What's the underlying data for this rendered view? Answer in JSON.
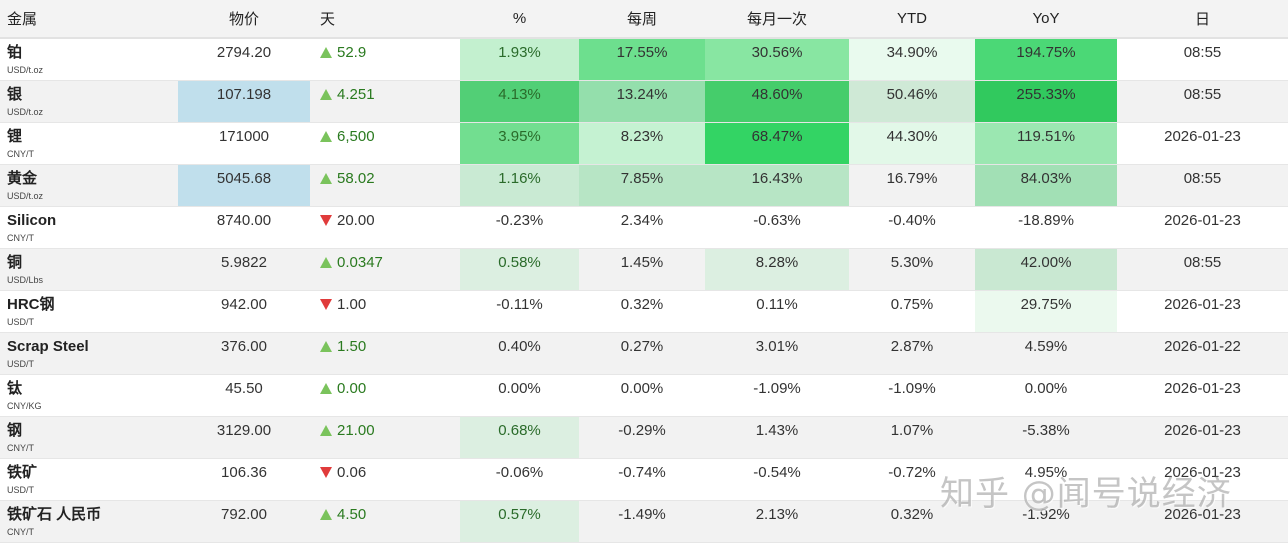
{
  "header": {
    "name": "金属",
    "price": "物价",
    "day": "天",
    "pct": "%",
    "weekly": "每周",
    "monthly": "每月一次",
    "ytd": "YTD",
    "yoy": "YoY",
    "date": "日"
  },
  "colors": {
    "up_arrow": "#7ac35c",
    "down_arrow": "#e03b3b",
    "price_highlight": "#c0dfec",
    "row_even": "#f2f2f2",
    "row_odd": "#ffffff"
  },
  "rows": [
    {
      "name": "铂",
      "unit": "USD/t.oz",
      "price": "2794.20",
      "price_bg": "",
      "dir": "up",
      "day": "52.9",
      "pct": "1.93%",
      "pct_bg": "#c3f0cf",
      "week": "17.55%",
      "week_bg": "#6ddf8e",
      "month": "30.56%",
      "month_bg": "#88e6a2",
      "ytd": "34.90%",
      "ytd_bg": "#e9faee",
      "yoy": "194.75%",
      "yoy_bg": "#4bd876",
      "date": "08:55"
    },
    {
      "name": "银",
      "unit": "USD/t.oz",
      "price": "107.198",
      "price_bg": "#c0dfec",
      "dir": "up",
      "day": "4.251",
      "pct": "4.13%",
      "pct_bg": "#52cf76",
      "week": "13.24%",
      "week_bg": "#94dfac",
      "month": "48.60%",
      "month_bg": "#45cd6b",
      "ytd": "50.46%",
      "ytd_bg": "#cfe9d6",
      "yoy": "255.33%",
      "yoy_bg": "#31c95e",
      "date": "08:55"
    },
    {
      "name": "锂",
      "unit": "CNY/T",
      "price": "171000",
      "price_bg": "",
      "dir": "up",
      "day": "6,500",
      "pct": "3.95%",
      "pct_bg": "#72de90",
      "week": "8.23%",
      "week_bg": "#c5f2d2",
      "month": "68.47%",
      "month_bg": "#33d464",
      "ytd": "44.30%",
      "ytd_bg": "#e2f8e8",
      "yoy": "119.51%",
      "yoy_bg": "#9be7b1",
      "date": "2026-01-23"
    },
    {
      "name": "黄金",
      "unit": "USD/t.oz",
      "price": "5045.68",
      "price_bg": "#c0dfec",
      "dir": "up",
      "day": "58.02",
      "pct": "1.16%",
      "pct_bg": "#c9ead3",
      "week": "7.85%",
      "week_bg": "#b7e5c5",
      "month": "16.43%",
      "month_bg": "#b7e5c5",
      "ytd": "16.79%",
      "ytd_bg": "",
      "yoy": "84.03%",
      "yoy_bg": "#a2e0b5",
      "date": "08:55"
    },
    {
      "name": "Silicon",
      "unit": "CNY/T",
      "price": "8740.00",
      "price_bg": "",
      "dir": "down",
      "day": "20.00",
      "pct": "-0.23%",
      "pct_bg": "",
      "week": "2.34%",
      "week_bg": "",
      "month": "-0.63%",
      "month_bg": "",
      "ytd": "-0.40%",
      "ytd_bg": "",
      "yoy": "-18.89%",
      "yoy_bg": "",
      "date": "2026-01-23"
    },
    {
      "name": "铜",
      "unit": "USD/Lbs",
      "price": "5.9822",
      "price_bg": "",
      "dir": "up",
      "day": "0.0347",
      "pct": "0.58%",
      "pct_bg": "#dcefe1",
      "week": "1.45%",
      "week_bg": "",
      "month": "8.28%",
      "month_bg": "#dcefe1",
      "ytd": "5.30%",
      "ytd_bg": "",
      "yoy": "42.00%",
      "yoy_bg": "#c9e8d2",
      "date": "08:55"
    },
    {
      "name": "HRC钢",
      "unit": "USD/T",
      "price": "942.00",
      "price_bg": "",
      "dir": "down",
      "day": "1.00",
      "pct": "-0.11%",
      "pct_bg": "",
      "week": "0.32%",
      "week_bg": "",
      "month": "0.11%",
      "month_bg": "",
      "ytd": "0.75%",
      "ytd_bg": "",
      "yoy": "29.75%",
      "yoy_bg": "#ebf9ee",
      "date": "2026-01-23"
    },
    {
      "name": "Scrap Steel",
      "unit": "USD/T",
      "price": "376.00",
      "price_bg": "",
      "dir": "up",
      "day": "1.50",
      "pct": "0.40%",
      "pct_bg": "",
      "week": "0.27%",
      "week_bg": "",
      "month": "3.01%",
      "month_bg": "",
      "ytd": "2.87%",
      "ytd_bg": "",
      "yoy": "4.59%",
      "yoy_bg": "",
      "date": "2026-01-22"
    },
    {
      "name": "钛",
      "unit": "CNY/KG",
      "price": "45.50",
      "price_bg": "",
      "dir": "up",
      "day": "0.00",
      "pct": "0.00%",
      "pct_bg": "",
      "week": "0.00%",
      "week_bg": "",
      "month": "-1.09%",
      "month_bg": "",
      "ytd": "-1.09%",
      "ytd_bg": "",
      "yoy": "0.00%",
      "yoy_bg": "",
      "date": "2026-01-23"
    },
    {
      "name": "钢",
      "unit": "CNY/T",
      "price": "3129.00",
      "price_bg": "",
      "dir": "up",
      "day": "21.00",
      "pct": "0.68%",
      "pct_bg": "#dcefe1",
      "week": "-0.29%",
      "week_bg": "",
      "month": "1.43%",
      "month_bg": "",
      "ytd": "1.07%",
      "ytd_bg": "",
      "yoy": "-5.38%",
      "yoy_bg": "",
      "date": "2026-01-23"
    },
    {
      "name": "铁矿",
      "unit": "USD/T",
      "price": "106.36",
      "price_bg": "",
      "dir": "down",
      "day": "0.06",
      "pct": "-0.06%",
      "pct_bg": "",
      "week": "-0.74%",
      "week_bg": "",
      "month": "-0.54%",
      "month_bg": "",
      "ytd": "-0.72%",
      "ytd_bg": "",
      "yoy": "4.95%",
      "yoy_bg": "",
      "date": "2026-01-23"
    },
    {
      "name": "铁矿石 人民币",
      "unit": "CNY/T",
      "price": "792.00",
      "price_bg": "",
      "dir": "up",
      "day": "4.50",
      "pct": "0.57%",
      "pct_bg": "#dcefe1",
      "week": "-1.49%",
      "week_bg": "",
      "month": "2.13%",
      "month_bg": "",
      "ytd": "0.32%",
      "ytd_bg": "",
      "yoy": "-1.92%",
      "yoy_bg": "",
      "date": "2026-01-23"
    }
  ],
  "watermark": "知乎 @闻号说经济"
}
